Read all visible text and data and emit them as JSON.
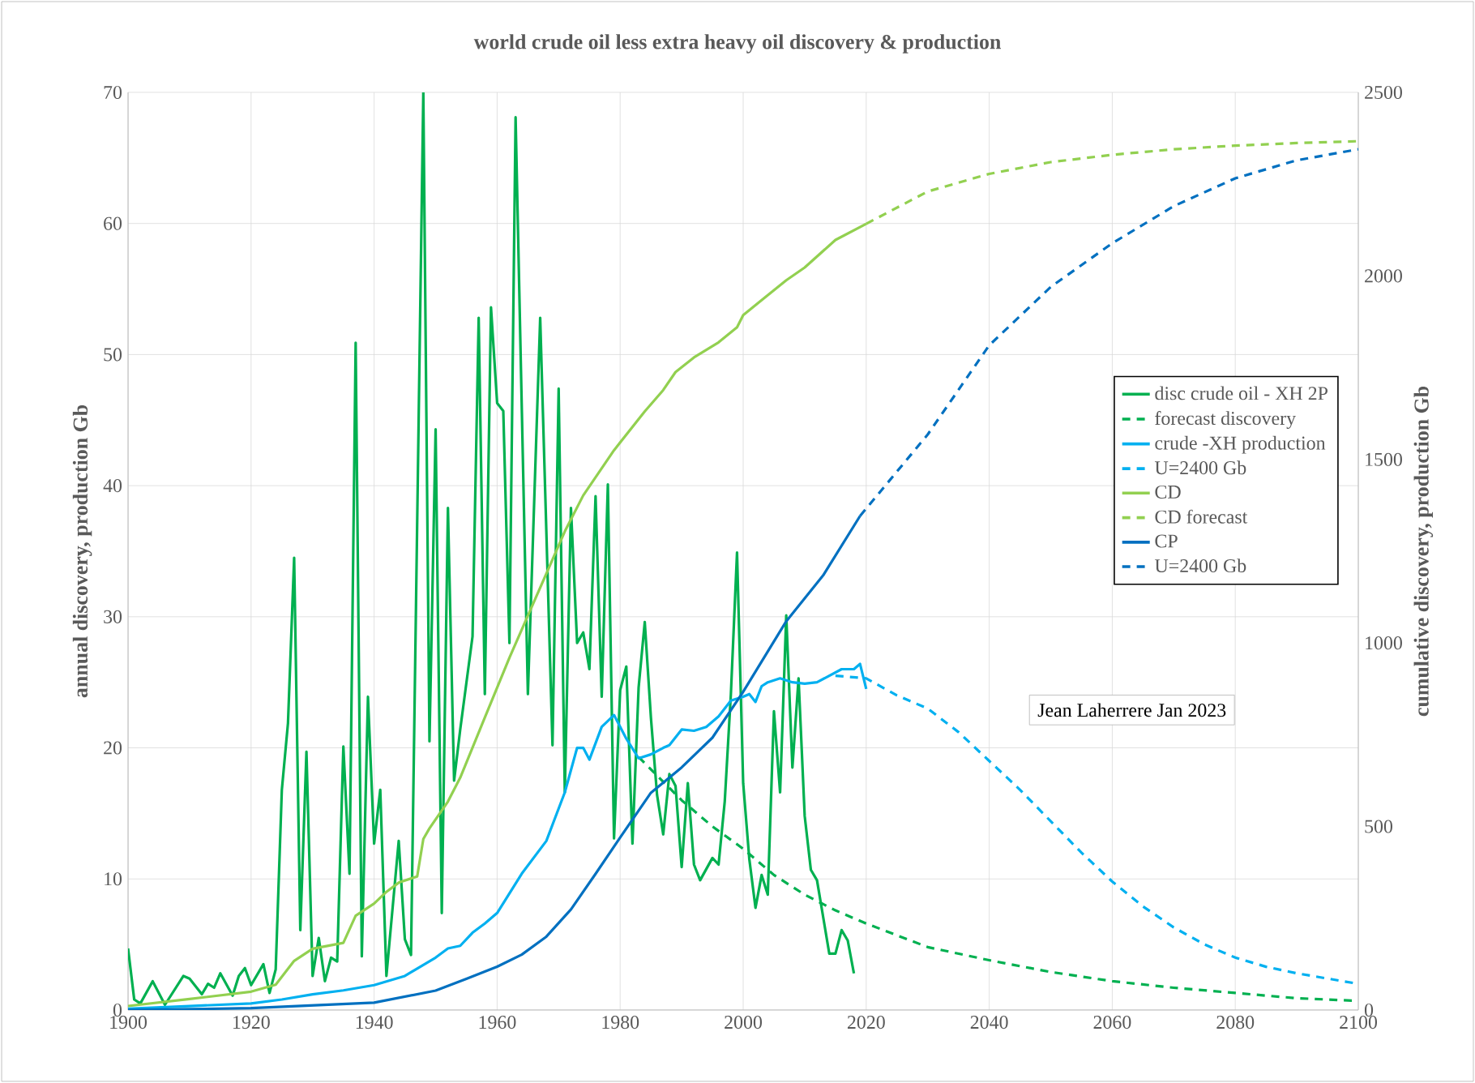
{
  "chart_data": {
    "type": "line",
    "title": "world crude oil less extra heavy oil discovery & production",
    "ylabel": "annual discovery, production Gb",
    "y2label": "cumulative discovery, production Gb",
    "xlim": [
      1900,
      2100
    ],
    "xticks": [
      1900,
      1920,
      1940,
      1960,
      1980,
      2000,
      2020,
      2040,
      2060,
      2080,
      2100
    ],
    "ylim": [
      0,
      70
    ],
    "yticks": [
      0,
      10,
      20,
      30,
      40,
      50,
      60,
      70
    ],
    "y2lim": [
      0,
      2500
    ],
    "y2ticks": [
      0,
      500,
      1000,
      1500,
      2000,
      2500
    ],
    "grid": true,
    "legend": "right",
    "annotations": [
      "Jean Laherrere Jan 2023"
    ],
    "series": [
      {
        "name": "disc crude oil - XH 2P",
        "color": "#00b050",
        "axis": "y",
        "line_style": "solid",
        "x": [
          1900,
          1901,
          1902,
          1904,
          1906,
          1909,
          1910,
          1912,
          1913,
          1914,
          1915,
          1917,
          1918,
          1919,
          1920,
          1922,
          1923,
          1924,
          1925,
          1926,
          1927,
          1928,
          1929,
          1930,
          1931,
          1932,
          1933,
          1934,
          1935,
          1936,
          1937,
          1938,
          1939,
          1940,
          1941,
          1942,
          1944,
          1945,
          1946,
          1948,
          1949,
          1950,
          1951,
          1952,
          1953,
          1954,
          1956,
          1957,
          1958,
          1959,
          1960,
          1961,
          1962,
          1963,
          1965,
          1967,
          1969,
          1970,
          1971,
          1972,
          1973,
          1974,
          1975,
          1976,
          1977,
          1978,
          1979,
          1980,
          1981,
          1982,
          1983,
          1984,
          1985,
          1986,
          1987,
          1988,
          1989,
          1990,
          1991,
          1992,
          1993,
          1995,
          1996,
          1997,
          1998,
          1999,
          2000,
          2001,
          2002,
          2003,
          2004,
          2005,
          2006,
          2007,
          2008,
          2009,
          2010,
          2011,
          2012,
          2014,
          2015,
          2016,
          2017,
          2018
        ],
        "values": [
          4.7,
          0.8,
          0.5,
          2.2,
          0.4,
          2.6,
          2.4,
          1.2,
          2.0,
          1.7,
          2.8,
          1.1,
          2.6,
          3.2,
          1.9,
          3.5,
          1.3,
          3.1,
          16.8,
          21.9,
          34.5,
          6.1,
          19.7,
          2.6,
          5.5,
          2.2,
          4.0,
          3.7,
          20.1,
          10.4,
          50.9,
          4.1,
          23.9,
          12.7,
          16.8,
          2.6,
          12.9,
          5.4,
          4.2,
          70,
          20.5,
          44.3,
          7.4,
          38.3,
          17.5,
          21.4,
          28.5,
          52.8,
          24.1,
          53.6,
          46.3,
          45.7,
          28.0,
          68.1,
          24.1,
          52.8,
          20.2,
          47.4,
          16.6,
          38.3,
          28.0,
          28.8,
          26.0,
          39.2,
          23.9,
          40.1,
          13.1,
          24.4,
          26.2,
          12.7,
          24.6,
          29.6,
          22.3,
          16.4,
          13.4,
          18.0,
          17.1,
          10.9,
          17.3,
          11.1,
          9.9,
          11.6,
          11.1,
          15.9,
          24.1,
          34.9,
          17.3,
          11.5,
          7.8,
          10.3,
          8.8,
          22.8,
          16.6,
          30.1,
          18.5,
          25.3,
          14.8,
          10.7,
          9.9,
          4.3,
          4.3,
          6.1,
          5.3,
          2.8
        ]
      },
      {
        "name": "forecast discovery",
        "color": "#00b050",
        "axis": "y",
        "line_style": "dashed",
        "x": [
          1983,
          1990,
          1995,
          2000,
          2005,
          2010,
          2015,
          2020,
          2030,
          2040,
          2050,
          2060,
          2070,
          2080,
          2090,
          2100
        ],
        "values": [
          19.3,
          16.0,
          14.0,
          12.3,
          10.3,
          8.8,
          7.6,
          6.6,
          4.8,
          3.8,
          2.9,
          2.2,
          1.7,
          1.3,
          0.9,
          0.7
        ]
      },
      {
        "name": "crude -XH  production",
        "color": "#00b0f0",
        "axis": "y",
        "line_style": "solid",
        "x": [
          1900,
          1910,
          1920,
          1925,
          1930,
          1935,
          1940,
          1945,
          1950,
          1952,
          1954,
          1956,
          1958,
          1960,
          1964,
          1968,
          1971,
          1973,
          1974,
          1975,
          1977,
          1979,
          1981,
          1983,
          1985,
          1987,
          1988,
          1990,
          1992,
          1994,
          1996,
          1998,
          2000,
          2001,
          2002,
          2003,
          2004,
          2006,
          2008,
          2010,
          2012,
          2014,
          2016,
          2018,
          2019,
          2020
        ],
        "values": [
          0.1,
          0.3,
          0.5,
          0.8,
          1.2,
          1.5,
          1.9,
          2.6,
          4.0,
          4.7,
          4.9,
          5.9,
          6.6,
          7.4,
          10.4,
          12.9,
          16.6,
          20.0,
          20.0,
          19.1,
          21.6,
          22.5,
          20.7,
          19.2,
          19.5,
          20.0,
          20.2,
          21.4,
          21.3,
          21.6,
          22.4,
          23.6,
          23.9,
          24.1,
          23.5,
          24.7,
          25.0,
          25.3,
          25.0,
          24.9,
          25.0,
          25.5,
          26.0,
          26.0,
          26.4,
          24.5
        ]
      },
      {
        "name": "U=2400 Gb",
        "color": "#00b0f0",
        "axis": "y",
        "line_style": "dashed",
        "x": [
          2015,
          2020,
          2025,
          2030,
          2035,
          2040,
          2045,
          2050,
          2055,
          2060,
          2065,
          2070,
          2075,
          2080,
          2085,
          2090,
          2095,
          2100
        ],
        "values": [
          25.5,
          25.3,
          24.0,
          23.0,
          21.2,
          19.0,
          16.8,
          14.4,
          12.0,
          9.8,
          7.9,
          6.3,
          5.0,
          4.0,
          3.3,
          2.8,
          2.4,
          2.0
        ]
      },
      {
        "name": "CD",
        "color": "#92d050",
        "axis": "y2",
        "line_style": "solid",
        "x": [
          1900,
          1910,
          1920,
          1924,
          1927,
          1930,
          1935,
          1937,
          1940,
          1942,
          1944,
          1947,
          1948,
          1949,
          1952,
          1954,
          1958,
          1962,
          1968,
          1971,
          1974,
          1979,
          1984,
          1987,
          1989,
          1992,
          1996,
          1999,
          2000,
          2003,
          2007,
          2010,
          2015,
          2020
        ],
        "values": [
          11,
          30,
          50,
          69,
          134,
          167,
          183,
          257,
          290,
          322,
          347,
          364,
          466,
          495,
          568,
          633,
          797,
          960,
          1189,
          1304,
          1402,
          1525,
          1631,
          1689,
          1738,
          1778,
          1819,
          1860,
          1893,
          1934,
          1988,
          2023,
          2098,
          2142
        ]
      },
      {
        "name": "CD forecast",
        "color": "#92d050",
        "axis": "y2",
        "line_style": "dashed",
        "x": [
          2020,
          2030,
          2040,
          2050,
          2060,
          2070,
          2080,
          2090,
          2100
        ],
        "values": [
          2142,
          2230,
          2278,
          2310,
          2330,
          2345,
          2355,
          2362,
          2367
        ]
      },
      {
        "name": "CP",
        "color": "#0070c0",
        "axis": "y2",
        "line_style": "solid",
        "x": [
          1900,
          1920,
          1940,
          1950,
          1955,
          1960,
          1964,
          1968,
          1972,
          1976,
          1980,
          1985,
          1990,
          1995,
          2000,
          2007,
          2013,
          2019
        ],
        "values": [
          0,
          5,
          20,
          53,
          85,
          118,
          151,
          200,
          274,
          371,
          470,
          592,
          661,
          742,
          867,
          1059,
          1184,
          1346
        ]
      },
      {
        "name": "U=2400 Gb",
        "color": "#0070c0",
        "axis": "y2",
        "line_style": "dashed",
        "x": [
          2019,
          2030,
          2040,
          2050,
          2060,
          2070,
          2080,
          2090,
          2100
        ],
        "values": [
          1346,
          1568,
          1811,
          1970,
          2089,
          2190,
          2266,
          2315,
          2345
        ]
      }
    ]
  }
}
